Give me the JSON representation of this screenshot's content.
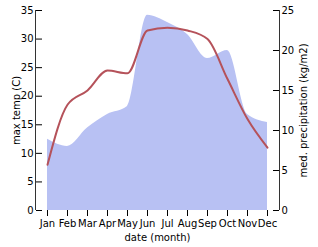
{
  "chart_data": {
    "type": "line",
    "xlabel": "date (month)",
    "categories": [
      "Jan",
      "Feb",
      "Mar",
      "Apr",
      "May",
      "Jun",
      "Jul",
      "Aug",
      "Sep",
      "Oct",
      "Nov",
      "Dec"
    ],
    "series": [
      {
        "name": "max temp (C)",
        "type": "line",
        "color": "#b5525a",
        "values": [
          8,
          18.5,
          21,
          24.5,
          24,
          31.5,
          32,
          31.5,
          30,
          23,
          16,
          11
        ]
      },
      {
        "name": "med. precipitation (kg/m2)",
        "type": "area",
        "axis": "y2",
        "color": "#b8c1f3",
        "values": [
          8.9,
          8,
          10.3,
          12,
          13,
          24.4,
          23.5,
          22,
          19,
          20,
          12,
          11
        ]
      }
    ],
    "ylim": [
      0,
      35
    ],
    "yticks": [
      0,
      5,
      10,
      15,
      20,
      25,
      30,
      35
    ],
    "y2lim": [
      0,
      25
    ],
    "y2ticks": [
      0,
      5,
      10,
      15,
      20,
      25
    ]
  }
}
